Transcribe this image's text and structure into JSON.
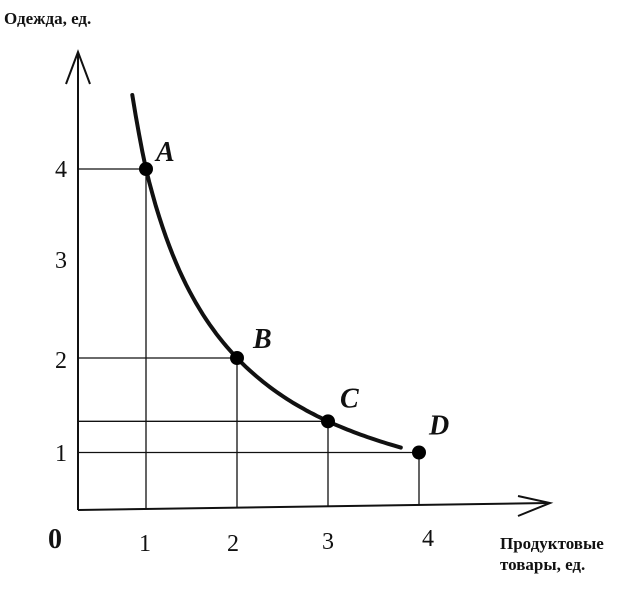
{
  "chart_data": {
    "type": "line",
    "y_axis_label": "Одежда, ед.",
    "x_axis_label_lines": [
      "Продуктовые",
      "товары, ед."
    ],
    "origin_label": "0",
    "x_ticks": [
      "1",
      "2",
      "3",
      "4"
    ],
    "y_ticks": [
      "1",
      "2",
      "3",
      "4"
    ],
    "xlim": [
      0,
      4.7
    ],
    "ylim": [
      0,
      4.7
    ],
    "series": [
      {
        "points": [
          {
            "label": "A",
            "x": 1,
            "y": 4
          },
          {
            "label": "B",
            "x": 2,
            "y": 2
          },
          {
            "label": "C",
            "x": 3,
            "y": 1.33
          },
          {
            "label": "D",
            "x": 4,
            "y": 1
          }
        ],
        "curve_x_range": [
          0.85,
          3.8
        ]
      }
    ]
  }
}
